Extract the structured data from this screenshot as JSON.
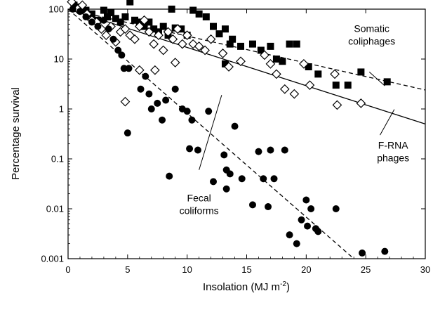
{
  "chart_data": {
    "type": "scatter",
    "xlabel": "Insolation (MJ m",
    "xlabel_sup": "-2",
    "xlabel_close": ")",
    "ylabel": "Percentage survival",
    "xlim": [
      0,
      30
    ],
    "ylim": [
      0.001,
      100
    ],
    "yscale": "log",
    "grid": false,
    "legend": "none",
    "x_ticks": [
      {
        "value": 0,
        "label": "0"
      },
      {
        "value": 5,
        "label": "5"
      },
      {
        "value": 10,
        "label": "10"
      },
      {
        "value": 15,
        "label": "15"
      },
      {
        "value": 20,
        "label": "20"
      },
      {
        "value": 25,
        "label": "25"
      },
      {
        "value": 30,
        "label": "30"
      }
    ],
    "y_ticks": [
      {
        "value": 100,
        "label": "100"
      },
      {
        "value": 10,
        "label": "10"
      },
      {
        "value": 1,
        "label": "1"
      },
      {
        "value": 0.1,
        "label": "0.1"
      },
      {
        "value": 0.01,
        "label": "0.01"
      },
      {
        "value": 0.001,
        "label": "0.001"
      }
    ],
    "series": [
      {
        "marker": "filled-square",
        "color": "#000000",
        "points": [
          [
            0.5,
            120
          ],
          [
            1.0,
            110
          ],
          [
            1.5,
            95
          ],
          [
            2.0,
            80
          ],
          [
            2.5,
            60
          ],
          [
            3.0,
            95
          ],
          [
            3.3,
            70
          ],
          [
            3.6,
            85
          ],
          [
            4.0,
            65
          ],
          [
            4.4,
            55
          ],
          [
            4.8,
            70
          ],
          [
            5.2,
            140
          ],
          [
            5.6,
            60
          ],
          [
            6.0,
            55
          ],
          [
            6.4,
            45
          ],
          [
            6.8,
            55
          ],
          [
            7.2,
            40
          ],
          [
            7.6,
            35
          ],
          [
            8.0,
            45
          ],
          [
            8.4,
            30
          ],
          [
            8.7,
            100
          ],
          [
            9.0,
            42
          ],
          [
            9.5,
            40
          ],
          [
            10.0,
            30
          ],
          [
            10.5,
            95
          ],
          [
            11.0,
            80
          ],
          [
            11.6,
            70
          ],
          [
            12.2,
            45
          ],
          [
            12.7,
            32
          ],
          [
            13.2,
            40
          ],
          [
            13.6,
            20
          ],
          [
            13.2,
            8
          ],
          [
            13.8,
            25
          ],
          [
            14.5,
            18
          ],
          [
            15.5,
            20
          ],
          [
            16.2,
            15
          ],
          [
            17.0,
            18
          ],
          [
            17.5,
            10
          ],
          [
            18.0,
            9
          ],
          [
            18.6,
            20
          ],
          [
            19.2,
            20
          ],
          [
            20.2,
            7
          ],
          [
            21.0,
            5
          ],
          [
            22.5,
            3
          ],
          [
            23.5,
            3
          ],
          [
            24.6,
            5.5
          ],
          [
            26.8,
            3.5
          ]
        ]
      },
      {
        "marker": "open-diamond",
        "color": "#000000",
        "points": [
          [
            0.3,
            140
          ],
          [
            0.8,
            100
          ],
          [
            1.2,
            120
          ],
          [
            1.6,
            80
          ],
          [
            2.0,
            60
          ],
          [
            2.4,
            55
          ],
          [
            2.8,
            40
          ],
          [
            3.2,
            30
          ],
          [
            3.6,
            45
          ],
          [
            4.0,
            22
          ],
          [
            4.4,
            35
          ],
          [
            4.8,
            40
          ],
          [
            5.2,
            30
          ],
          [
            5.6,
            25
          ],
          [
            6.0,
            45
          ],
          [
            6.4,
            60
          ],
          [
            6.8,
            35
          ],
          [
            7.2,
            20
          ],
          [
            7.6,
            30
          ],
          [
            8.0,
            15
          ],
          [
            8.4,
            35
          ],
          [
            8.8,
            25
          ],
          [
            9.2,
            40
          ],
          [
            9.6,
            20
          ],
          [
            10.0,
            30
          ],
          [
            10.5,
            20
          ],
          [
            11.0,
            18
          ],
          [
            11.5,
            15
          ],
          [
            12.0,
            25
          ],
          [
            13.0,
            13
          ],
          [
            13.5,
            7
          ],
          [
            14.5,
            9
          ],
          [
            16.5,
            12
          ],
          [
            17.0,
            8
          ],
          [
            17.5,
            5
          ],
          [
            18.2,
            2.5
          ],
          [
            19.0,
            2
          ],
          [
            19.8,
            8
          ],
          [
            20.3,
            3
          ],
          [
            22.4,
            5
          ],
          [
            22.6,
            1.2
          ],
          [
            24.6,
            1.3
          ],
          [
            4.8,
            1.4
          ],
          [
            7.3,
            6
          ],
          [
            9.0,
            8.5
          ],
          [
            6.0,
            6
          ]
        ]
      },
      {
        "marker": "filled-circle",
        "color": "#000000",
        "points": [
          [
            0.4,
            100
          ],
          [
            1.0,
            90
          ],
          [
            1.5,
            70
          ],
          [
            2.0,
            55
          ],
          [
            2.5,
            45
          ],
          [
            3.0,
            60
          ],
          [
            3.4,
            40
          ],
          [
            3.8,
            25
          ],
          [
            4.2,
            15
          ],
          [
            4.5,
            12
          ],
          [
            4.7,
            6.5
          ],
          [
            5.1,
            6.5
          ],
          [
            5.0,
            0.33
          ],
          [
            6.1,
            2.5
          ],
          [
            6.5,
            4.5
          ],
          [
            6.8,
            2
          ],
          [
            7.0,
            1
          ],
          [
            7.5,
            1.3
          ],
          [
            7.9,
            0.6
          ],
          [
            8.2,
            1.5
          ],
          [
            8.5,
            0.045
          ],
          [
            9.0,
            2.5
          ],
          [
            9.6,
            1
          ],
          [
            10.0,
            0.9
          ],
          [
            10.4,
            0.6
          ],
          [
            10.2,
            0.16
          ],
          [
            10.9,
            0.15
          ],
          [
            11.8,
            0.9
          ],
          [
            12.2,
            0.035
          ],
          [
            13.1,
            0.12
          ],
          [
            13.3,
            0.025
          ],
          [
            13.6,
            0.05
          ],
          [
            14.0,
            0.45
          ],
          [
            13.3,
            0.06
          ],
          [
            14.6,
            0.04
          ],
          [
            15.5,
            0.012
          ],
          [
            16.0,
            0.14
          ],
          [
            16.4,
            0.04
          ],
          [
            17.0,
            0.15
          ],
          [
            16.8,
            0.011
          ],
          [
            17.3,
            0.04
          ],
          [
            18.2,
            0.15
          ],
          [
            18.6,
            0.003
          ],
          [
            19.2,
            0.002
          ],
          [
            20.0,
            0.015
          ],
          [
            20.4,
            0.01
          ],
          [
            20.8,
            0.004
          ],
          [
            21.0,
            0.0035
          ],
          [
            22.5,
            0.01
          ],
          [
            24.7,
            0.0013
          ],
          [
            26.6,
            0.0014
          ],
          [
            19.6,
            0.006
          ],
          [
            20.1,
            0.0045
          ]
        ]
      }
    ],
    "fit_lines": [
      {
        "style": "dashed",
        "from": [
          0,
          100
        ],
        "to": [
          30,
          2.4
        ]
      },
      {
        "style": "solid",
        "from": [
          0,
          100
        ],
        "to": [
          30,
          0.5
        ]
      },
      {
        "style": "dashed",
        "from": [
          0,
          100
        ],
        "to": [
          24,
          0.001
        ]
      }
    ],
    "annotations": [
      {
        "lines": [
          "Somatic",
          "coliphages"
        ],
        "anchor": [
          25.5,
          35.0
        ],
        "leader": [
          [
            25.3,
            5.5
          ],
          [
            26.6,
            2.9
          ]
        ]
      },
      {
        "lines": [
          "F-RNA",
          "phages"
        ],
        "anchor": [
          27.3,
          0.16
        ],
        "leader": [
          [
            26.2,
            0.3
          ],
          [
            27.4,
            0.98
          ]
        ]
      },
      {
        "lines": [
          "Fecal",
          "coliforms"
        ],
        "anchor": [
          11.0,
          0.014
        ],
        "leader": [
          [
            11.0,
            0.06
          ],
          [
            12.9,
            1.9
          ]
        ]
      }
    ]
  }
}
